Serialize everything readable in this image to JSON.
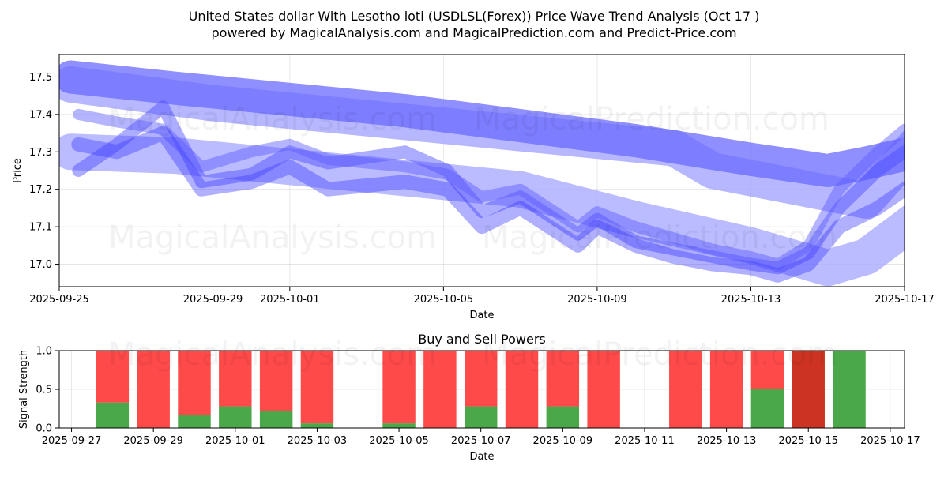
{
  "chart_data": [
    {
      "type": "line",
      "title": "United States dollar With Lesotho loti (USDLSL(Forex)) Price Wave Trend Analysis (Oct 17 )",
      "subtitle": "powered by MagicalAnalysis.com and MagicalPrediction.com and Predict-Price.com",
      "xlabel": "Date",
      "ylabel": "Price",
      "ylim": [
        16.94,
        17.56
      ],
      "xlim": [
        "2025-09-25",
        "2025-10-17"
      ],
      "x_ticks": [
        "2025-09-25",
        "2025-09-29",
        "2025-10-01",
        "2025-10-05",
        "2025-10-09",
        "2025-10-13",
        "2025-10-17"
      ],
      "y_ticks": [
        17.0,
        17.1,
        17.2,
        17.3,
        17.4,
        17.5
      ],
      "grid": true,
      "watermarks": [
        "MagicalAnalysis.com",
        "MagicalPrediction.com",
        "MagicalAnalysis.com",
        "MagicalPrediction.com"
      ],
      "series": [
        {
          "name": "upper-trend-band",
          "x": [
            0.3,
            4,
            8,
            12,
            16,
            17,
            19,
            21,
            22.3
          ],
          "values": [
            17.48,
            17.43,
            17.39,
            17.35,
            17.31,
            17.25,
            17.21,
            17.17,
            17.32
          ]
        },
        {
          "name": "main-trend-band",
          "x": [
            0.3,
            3,
            6,
            9,
            12,
            15,
            18,
            20,
            21,
            22.3
          ],
          "values": [
            17.5,
            17.47,
            17.44,
            17.41,
            17.37,
            17.33,
            17.28,
            17.25,
            17.27,
            17.3
          ]
        },
        {
          "name": "lower-trend-band",
          "x": [
            0.3,
            3,
            6,
            9,
            12,
            15,
            18,
            20,
            21,
            22.3
          ],
          "values": [
            17.3,
            17.29,
            17.26,
            17.23,
            17.2,
            17.12,
            17.05,
            16.99,
            17.02,
            17.12
          ]
        },
        {
          "name": "wave-1",
          "x": [
            0.5,
            1.5,
            2.7,
            3.7,
            5,
            6,
            7,
            9,
            10.1,
            11,
            12,
            13.5,
            14,
            15,
            16,
            17,
            18,
            18.7,
            19.5,
            20.3,
            21.3,
            22
          ],
          "values": [
            17.25,
            17.32,
            17.42,
            17.22,
            17.24,
            17.3,
            17.27,
            17.3,
            17.25,
            17.14,
            17.18,
            17.08,
            17.12,
            17.06,
            17.04,
            17.02,
            17.0,
            16.99,
            17.03,
            17.15,
            17.25,
            17.3
          ]
        },
        {
          "name": "wave-2",
          "x": [
            0.5,
            1.5,
            2.7,
            3.7,
            5,
            6,
            7,
            9,
            10.1,
            11,
            12,
            13.5,
            14,
            15,
            16,
            17,
            18,
            18.7,
            19.5,
            20.3,
            21.3,
            22
          ],
          "values": [
            17.4,
            17.38,
            17.36,
            17.26,
            17.3,
            17.32,
            17.28,
            17.26,
            17.24,
            17.18,
            17.2,
            17.1,
            17.14,
            17.1,
            17.07,
            17.04,
            17.02,
            17.0,
            17.05,
            17.2,
            17.3,
            17.36
          ]
        },
        {
          "name": "wave-3",
          "x": [
            0.5,
            1.5,
            2.7,
            3.7,
            5,
            6,
            7,
            9,
            10.1,
            11,
            12,
            13.5,
            14,
            15,
            16,
            17,
            18,
            18.7,
            19.5,
            20.3,
            21.3,
            22
          ],
          "values": [
            17.32,
            17.3,
            17.35,
            17.2,
            17.22,
            17.26,
            17.2,
            17.22,
            17.2,
            17.1,
            17.15,
            17.05,
            17.1,
            17.05,
            17.02,
            17.0,
            16.99,
            16.97,
            17.0,
            17.1,
            17.15,
            17.2
          ]
        }
      ]
    },
    {
      "type": "bar",
      "title": "Buy and Sell Powers",
      "xlabel": "Date",
      "ylabel": "Signal Strength",
      "ylim": [
        0,
        1.0
      ],
      "xlim": [
        "2025-09-27",
        "2025-10-17"
      ],
      "x_ticks": [
        "2025-09-27",
        "2025-09-29",
        "2025-10-01",
        "2025-10-03",
        "2025-10-05",
        "2025-10-07",
        "2025-10-09",
        "2025-10-11",
        "2025-10-13",
        "2025-10-15",
        "2025-10-17"
      ],
      "y_ticks": [
        0.0,
        0.5,
        1.0
      ],
      "y_tick_labels": [
        "0.0",
        "0.5",
        "1.0"
      ],
      "grid": true,
      "bars": [
        {
          "date": "2025-09-28",
          "buy": 0.33,
          "sell": 0.67,
          "sell_color": "#ff4a4a"
        },
        {
          "date": "2025-09-29",
          "buy": 0.0,
          "sell": 1.0,
          "sell_color": "#ff4a4a"
        },
        {
          "date": "2025-09-30",
          "buy": 0.17,
          "sell": 0.83,
          "sell_color": "#ff4a4a"
        },
        {
          "date": "2025-10-01",
          "buy": 0.28,
          "sell": 0.72,
          "sell_color": "#ff4a4a"
        },
        {
          "date": "2025-10-02",
          "buy": 0.22,
          "sell": 0.78,
          "sell_color": "#ff4a4a"
        },
        {
          "date": "2025-10-03",
          "buy": 0.06,
          "sell": 0.94,
          "sell_color": "#ff4a4a"
        },
        {
          "date": "2025-10-05",
          "buy": 0.06,
          "sell": 0.94,
          "sell_color": "#ff4a4a"
        },
        {
          "date": "2025-10-06",
          "buy": 0.0,
          "sell": 1.0,
          "sell_color": "#ff4a4a"
        },
        {
          "date": "2025-10-07",
          "buy": 0.28,
          "sell": 0.72,
          "sell_color": "#ff4a4a"
        },
        {
          "date": "2025-10-08",
          "buy": 0.0,
          "sell": 1.0,
          "sell_color": "#ff4a4a"
        },
        {
          "date": "2025-10-09",
          "buy": 0.28,
          "sell": 0.72,
          "sell_color": "#ff4a4a"
        },
        {
          "date": "2025-10-10",
          "buy": 0.0,
          "sell": 1.0,
          "sell_color": "#ff4a4a"
        },
        {
          "date": "2025-10-12",
          "buy": 0.0,
          "sell": 1.0,
          "sell_color": "#ff4a4a"
        },
        {
          "date": "2025-10-13",
          "buy": 0.0,
          "sell": 1.0,
          "sell_color": "#ff4a4a"
        },
        {
          "date": "2025-10-14",
          "buy": 0.5,
          "sell": 0.5,
          "sell_color": "#ff4a4a"
        },
        {
          "date": "2025-10-15",
          "buy": 0.0,
          "sell": 1.0,
          "sell_color": "#cc3322"
        },
        {
          "date": "2025-10-16",
          "buy": 1.0,
          "sell": 0.0,
          "sell_color": "#ff4a4a"
        }
      ],
      "colors": {
        "buy": "#4aa84a",
        "sell": "#ff4a4a",
        "band": "#5a5aff",
        "band_light": "#aaaaff"
      }
    }
  ]
}
